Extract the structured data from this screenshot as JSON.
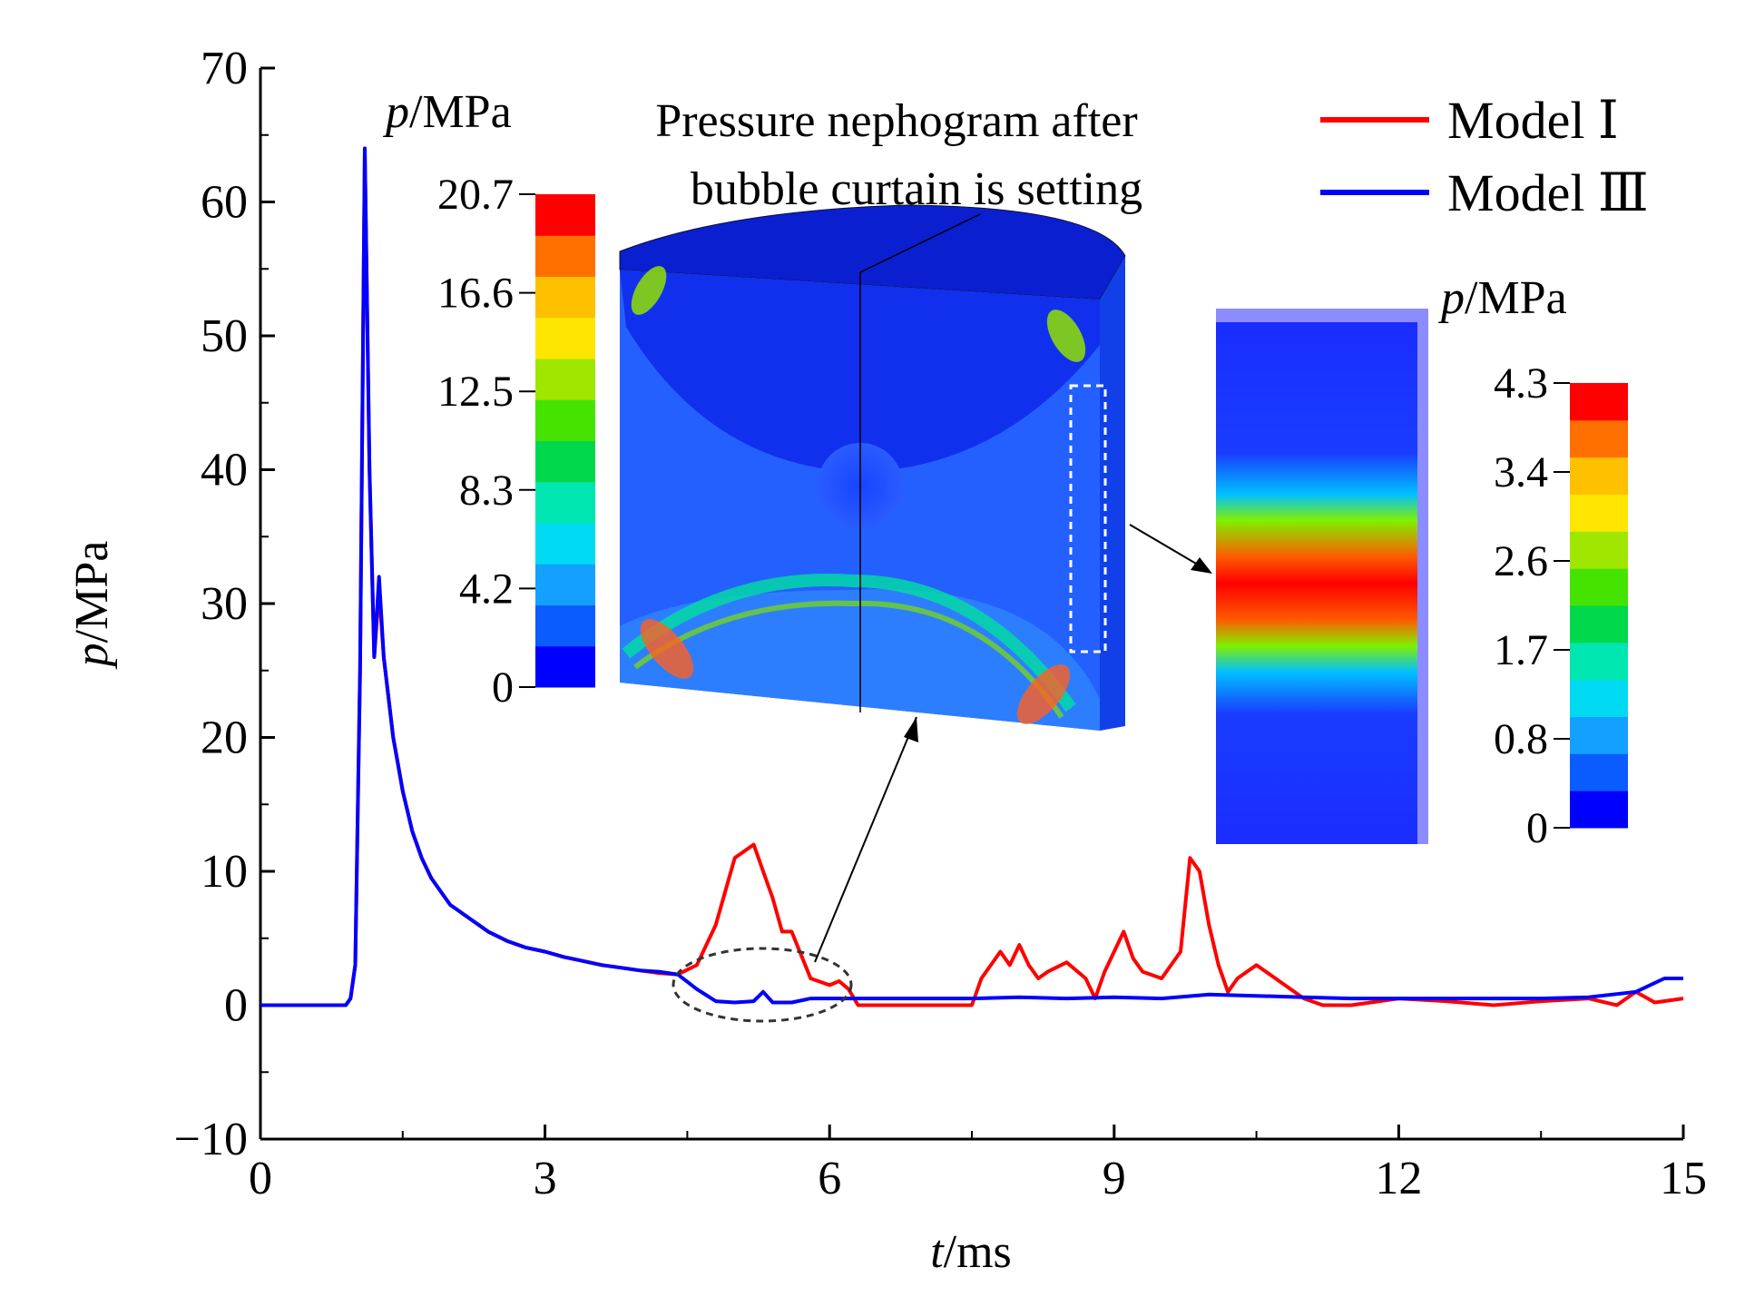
{
  "chart_data": {
    "type": "line",
    "xlabel": "t/ms",
    "ylabel": "p/MPa",
    "xlim": [
      0,
      15
    ],
    "ylim": [
      -10,
      70
    ],
    "x_ticks": [
      "0",
      "3",
      "6",
      "9",
      "12",
      "15"
    ],
    "y_ticks": [
      "−10",
      "0",
      "10",
      "20",
      "30",
      "40",
      "50",
      "60",
      "70"
    ],
    "grid": false,
    "legend_position": "top-right",
    "series": [
      {
        "name": "Model Ⅰ",
        "color": "#ff0000",
        "x": [
          0,
          0.9,
          0.95,
          1.0,
          1.05,
          1.1,
          1.15,
          1.2,
          1.25,
          1.3,
          1.35,
          1.4,
          1.45,
          1.5,
          1.6,
          1.7,
          1.8,
          1.9,
          2.0,
          2.2,
          2.4,
          2.6,
          2.8,
          3.0,
          3.2,
          3.4,
          3.6,
          3.8,
          4.0,
          4.2,
          4.4,
          4.6,
          4.8,
          5.0,
          5.2,
          5.3,
          5.4,
          5.5,
          5.6,
          5.8,
          6.0,
          6.1,
          6.2,
          6.3,
          6.5,
          7.0,
          7.5,
          7.6,
          7.8,
          7.9,
          8.0,
          8.1,
          8.2,
          8.3,
          8.5,
          8.7,
          8.8,
          8.9,
          9.0,
          9.1,
          9.2,
          9.3,
          9.5,
          9.7,
          9.8,
          9.9,
          10.0,
          10.1,
          10.2,
          10.3,
          10.4,
          10.5,
          10.6,
          10.8,
          11.0,
          11.2,
          11.5,
          12.0,
          12.5,
          13.0,
          13.5,
          14.0,
          14.3,
          14.5,
          14.7,
          15.0
        ],
        "y": [
          0,
          0,
          0.5,
          3,
          25,
          64,
          40,
          26,
          31,
          26,
          23,
          20,
          18,
          16,
          13,
          11,
          9.5,
          8.5,
          7.5,
          6.5,
          5.5,
          4.8,
          4.3,
          4.0,
          3.6,
          3.3,
          3.0,
          2.8,
          2.6,
          2.4,
          2.3,
          3.0,
          6.0,
          11.0,
          12.0,
          10.0,
          8.0,
          5.5,
          5.5,
          2.0,
          1.5,
          1.8,
          1.2,
          0,
          0,
          0,
          0,
          2.0,
          4.0,
          3.0,
          4.5,
          3.0,
          2.0,
          2.5,
          3.2,
          2.0,
          0.5,
          2.5,
          4.0,
          5.5,
          3.5,
          2.5,
          2.0,
          4.0,
          11.0,
          10.0,
          6.0,
          3.0,
          1.0,
          2.0,
          2.5,
          3.0,
          2.5,
          1.5,
          0.5,
          0,
          0,
          0.5,
          0.3,
          0,
          0.3,
          0.5,
          0,
          1.0,
          0.2,
          0.5
        ]
      },
      {
        "name": "Model Ⅲ",
        "color": "#0000ff",
        "x": [
          0,
          0.9,
          0.95,
          1.0,
          1.05,
          1.1,
          1.15,
          1.2,
          1.25,
          1.3,
          1.35,
          1.4,
          1.45,
          1.5,
          1.6,
          1.7,
          1.8,
          1.9,
          2.0,
          2.2,
          2.4,
          2.6,
          2.8,
          3.0,
          3.2,
          3.4,
          3.6,
          3.8,
          4.0,
          4.2,
          4.4,
          4.6,
          4.8,
          5.0,
          5.2,
          5.3,
          5.4,
          5.6,
          5.8,
          6.0,
          6.2,
          6.5,
          7.0,
          7.5,
          8.0,
          8.5,
          9.0,
          9.5,
          10.0,
          10.5,
          11.0,
          11.5,
          12.0,
          12.5,
          13.0,
          13.5,
          14.0,
          14.5,
          14.8,
          15.0
        ],
        "y": [
          0,
          0,
          0.5,
          3,
          25,
          64,
          40,
          26,
          32,
          26,
          23,
          20,
          18,
          16,
          13,
          11,
          9.5,
          8.5,
          7.5,
          6.5,
          5.5,
          4.8,
          4.3,
          4.0,
          3.6,
          3.3,
          3.0,
          2.8,
          2.6,
          2.5,
          2.3,
          1.2,
          0.3,
          0.2,
          0.3,
          1.0,
          0.2,
          0.2,
          0.5,
          0.5,
          0.5,
          0.5,
          0.5,
          0.5,
          0.6,
          0.5,
          0.6,
          0.5,
          0.8,
          0.7,
          0.6,
          0.5,
          0.5,
          0.5,
          0.5,
          0.5,
          0.6,
          1.0,
          2.0,
          2.0
        ]
      }
    ],
    "inset_main": {
      "title_line1": "Pressure nephogram after",
      "title_line2": "bubble curtain is setting",
      "unit_label": "/MPa",
      "unit_symbol": "p",
      "colorbar_ticks": [
        "20.7",
        "16.6",
        "12.5",
        "8.3",
        "4.2",
        "0"
      ]
    },
    "inset_zoom": {
      "unit_label": "/MPa",
      "unit_symbol": "p",
      "colorbar_ticks": [
        "4.3",
        "3.4",
        "2.6",
        "1.7",
        "0.8",
        "0"
      ]
    },
    "colorbar_colors": [
      "#0000ff",
      "#0b5cff",
      "#14a0ff",
      "#00d9f2",
      "#00e6b0",
      "#00d84c",
      "#44e400",
      "#9fe600",
      "#ffe600",
      "#ffc000",
      "#ff7000",
      "#ff0000"
    ]
  }
}
